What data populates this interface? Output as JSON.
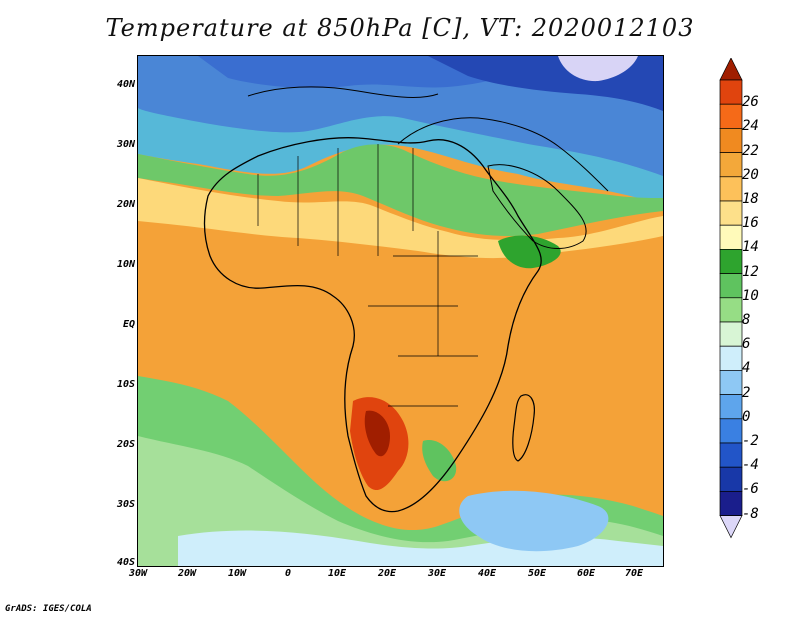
{
  "title": "Temperature at 850hPa [C], VT: 2020012103",
  "credit": "GrADS: IGES/COLA",
  "lat_labels": [
    "40N",
    "30N",
    "20N",
    "10N",
    "EQ",
    "10S",
    "20S",
    "30S",
    "40S"
  ],
  "lon_labels": [
    "30W",
    "20W",
    "10W",
    "0",
    "10E",
    "20E",
    "30E",
    "40E",
    "50E",
    "60E",
    "70E"
  ],
  "colorbar": {
    "labels": [
      "26",
      "24",
      "22",
      "20",
      "18",
      "16",
      "14",
      "12",
      "10",
      "8",
      "6",
      "4",
      "2",
      "0",
      "-2",
      "-4",
      "-6",
      "-8"
    ],
    "colors": [
      "#a01e00",
      "#e0440e",
      "#f56a18",
      "#f08a20",
      "#f3a83a",
      "#fdc15a",
      "#fde08a",
      "#fffaba",
      "#2ea42e",
      "#5fc35f",
      "#96dd85",
      "#d8f5d5",
      "#cfeefb",
      "#8ec8f4",
      "#5ea5ec",
      "#3a80e2",
      "#2255c8",
      "#1838a8",
      "#1a1e8c",
      "#dcd7f8"
    ]
  },
  "icons": {
    "map": "temperature-field-map",
    "colorbar": "temperature-colorbar"
  }
}
